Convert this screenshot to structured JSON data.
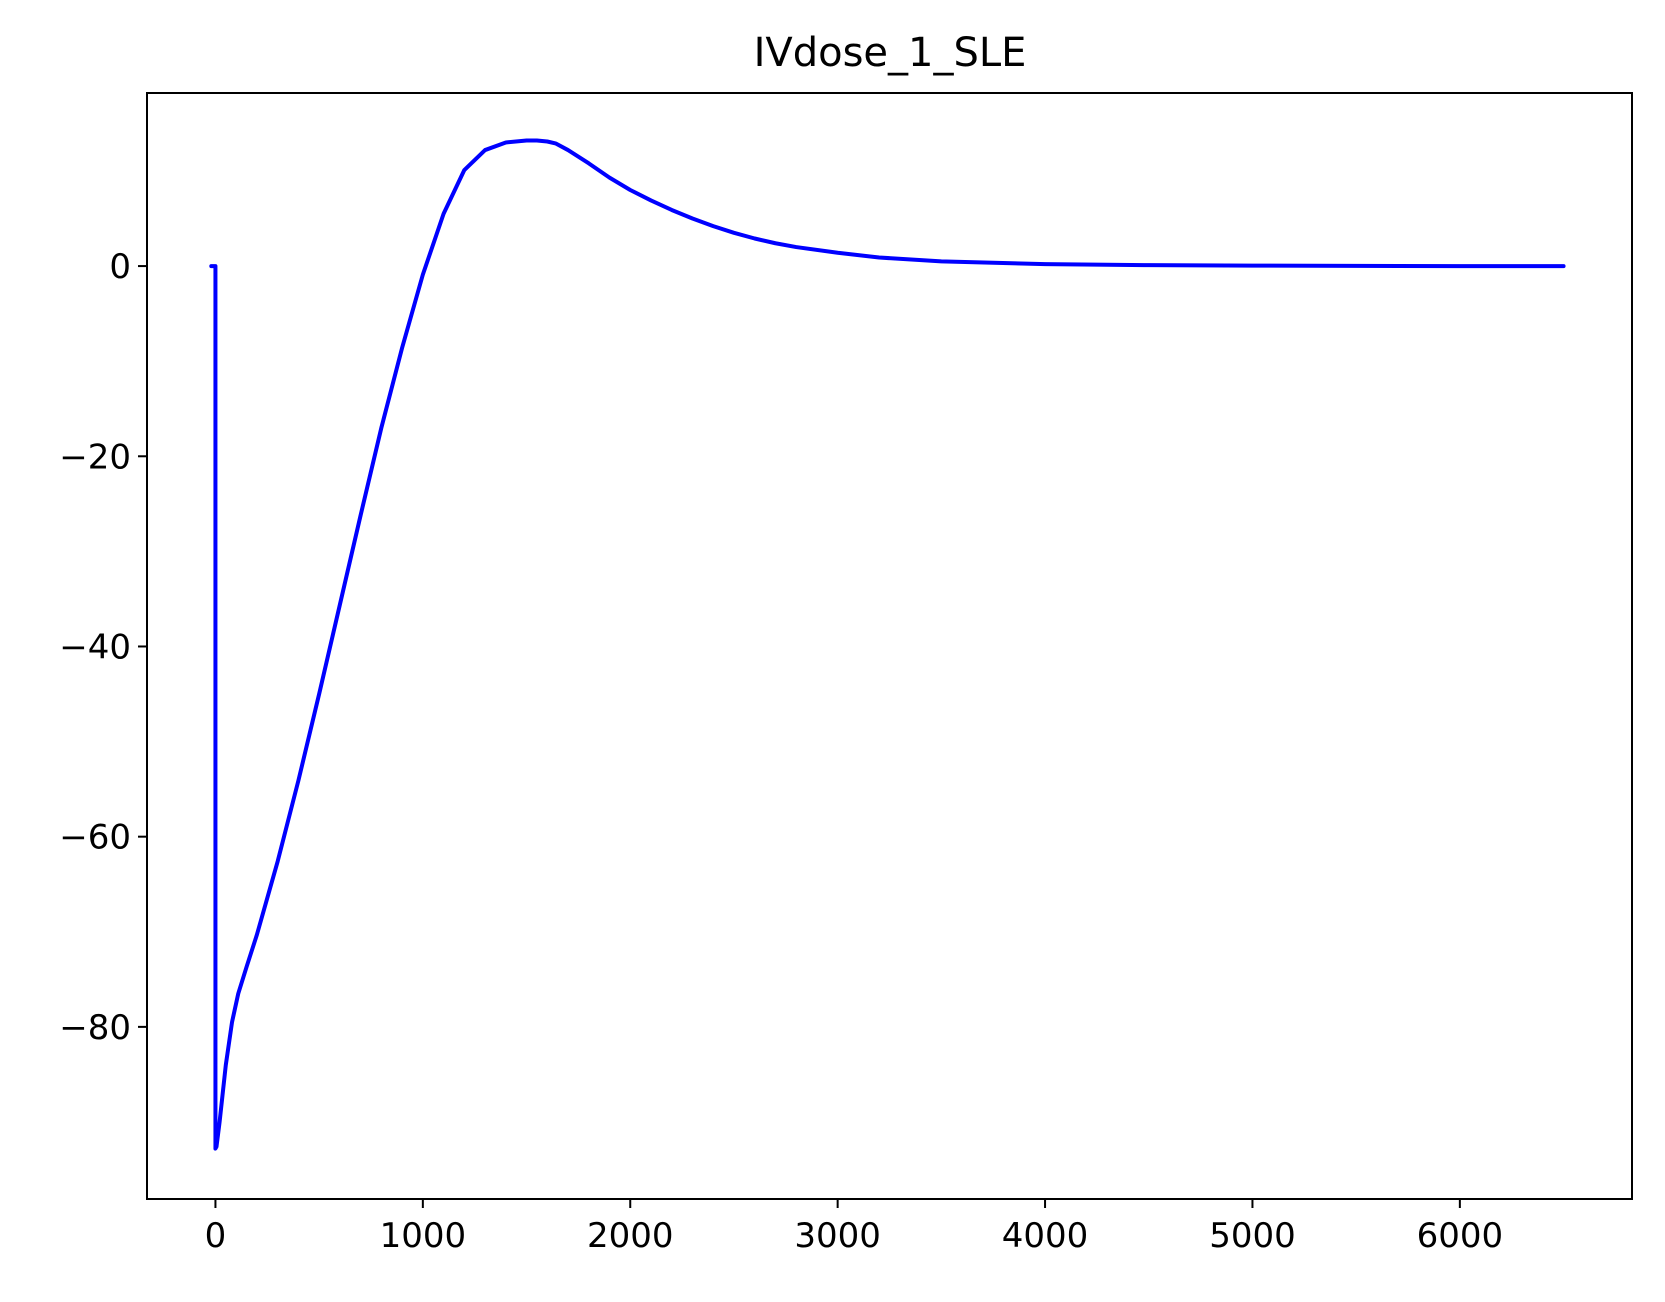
{
  "chart_data": {
    "type": "line",
    "title": "IVdose_1_SLE",
    "xlabel": "",
    "ylabel": "",
    "xlim": [
      -330,
      6830
    ],
    "ylim": [
      -98.1,
      18.2
    ],
    "grid": false,
    "x_ticks": [
      0,
      1000,
      2000,
      3000,
      4000,
      5000,
      6000
    ],
    "x_tick_labels": [
      "0",
      "1000",
      "2000",
      "3000",
      "4000",
      "5000",
      "6000"
    ],
    "y_ticks": [
      0,
      -20,
      -40,
      -60,
      -80
    ],
    "y_tick_labels": [
      "0",
      "−20",
      "−40",
      "−60",
      "−80"
    ],
    "series": [
      {
        "color": "#0000ff",
        "x": [
          -20,
          0,
          0,
          5,
          20,
          50,
          80,
          110,
          150,
          200,
          300,
          400,
          500,
          600,
          700,
          800,
          900,
          1000,
          1100,
          1200,
          1300,
          1400,
          1500,
          1550,
          1600,
          1640,
          1700,
          1800,
          1900,
          2000,
          2100,
          2200,
          2300,
          2400,
          2500,
          2600,
          2700,
          2800,
          3000,
          3200,
          3500,
          4000,
          4500,
          5000,
          5500,
          6000,
          6500
        ],
        "y": [
          0,
          0,
          -92.8,
          -92.6,
          -90,
          -84,
          -79.5,
          -76.5,
          -73.7,
          -70.3,
          -62.6,
          -54.1,
          -45,
          -35.6,
          -26.2,
          -17,
          -8.6,
          -0.9,
          5.5,
          10.1,
          12.2,
          13.0,
          13.2,
          13.2,
          13.1,
          12.9,
          12.2,
          10.8,
          9.3,
          8.0,
          6.9,
          5.9,
          5.0,
          4.2,
          3.5,
          2.9,
          2.4,
          2.0,
          1.4,
          0.9,
          0.5,
          0.2,
          0.1,
          0.05,
          0.02,
          0.0,
          0.0
        ]
      }
    ]
  }
}
